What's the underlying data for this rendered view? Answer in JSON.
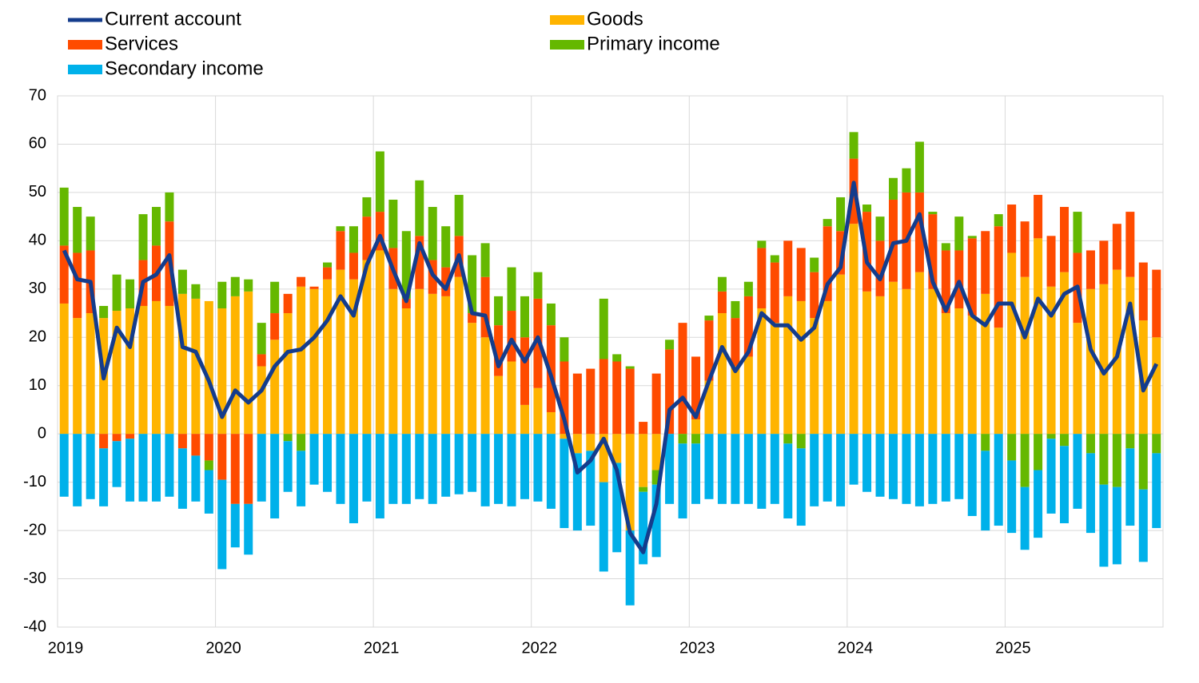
{
  "chart_data": {
    "type": "bar",
    "stacked": true,
    "categories": [
      "2019",
      null,
      null,
      null,
      null,
      null,
      null,
      null,
      null,
      null,
      null,
      null,
      "2020",
      null,
      null,
      null,
      null,
      null,
      null,
      null,
      null,
      null,
      null,
      null,
      "2021",
      null,
      null,
      null,
      null,
      null,
      null,
      null,
      null,
      null,
      null,
      null,
      "2022",
      null,
      null,
      null,
      null,
      null,
      null,
      null,
      null,
      null,
      null,
      null,
      "2023",
      null,
      null,
      null,
      null,
      null,
      null,
      null,
      null,
      null,
      null,
      null,
      "2024",
      null,
      null,
      null,
      null,
      null,
      null,
      null,
      null,
      null,
      null,
      null,
      "2025",
      null,
      null,
      null,
      null,
      null,
      null,
      null,
      null,
      null,
      null,
      null
    ],
    "series": [
      {
        "name": "Current account",
        "type": "line",
        "color": "#143c8c",
        "values": [
          38,
          32,
          31.5,
          11.5,
          22,
          18,
          31.5,
          33,
          37,
          18,
          17,
          11,
          3.5,
          9,
          6.5,
          9,
          14,
          17,
          17.5,
          20,
          23.5,
          28.5,
          24.5,
          35,
          41,
          34,
          27.5,
          39.5,
          33,
          30,
          37,
          25,
          24.5,
          14,
          19.5,
          15,
          20,
          12,
          3,
          -8,
          -5.5,
          -1,
          -7.5,
          -20.5,
          -24.5,
          -14.5,
          5,
          7.5,
          3.5,
          11,
          18,
          13,
          17,
          25,
          22.5,
          22.5,
          19.5,
          22,
          31,
          34.5,
          52,
          35.5,
          32,
          39.5,
          40,
          45.5,
          31.5,
          25.5,
          31.5,
          24.5,
          22.5,
          27,
          27,
          20,
          28,
          24.5,
          29,
          30.5,
          17.5,
          12.5,
          16,
          27,
          9,
          14.5
        ]
      },
      {
        "name": "Goods",
        "type": "bar",
        "color": "#ffb400",
        "values": [
          27,
          24,
          25,
          24,
          25.5,
          26,
          26.5,
          27.5,
          26.5,
          29,
          28,
          27.5,
          26,
          28.5,
          29.5,
          14,
          19.5,
          25,
          30.5,
          30,
          32,
          34,
          32,
          36,
          38,
          30,
          26,
          30,
          29,
          28.5,
          32.5,
          23,
          20,
          12,
          15,
          6,
          9.5,
          4.5,
          -1,
          -4,
          -3.5,
          -10,
          -6,
          -20,
          -11,
          -7.5,
          0,
          0,
          3,
          11,
          25,
          14,
          16,
          26,
          23,
          28.5,
          27.5,
          24,
          27.5,
          33,
          43.5,
          29.5,
          28.5,
          31.5,
          30,
          33.5,
          30,
          25,
          26,
          24.5,
          29,
          22,
          37.5,
          32.5,
          40.5,
          30.5,
          33.5,
          23,
          30,
          31,
          34,
          32.5,
          23.5,
          20
        ]
      },
      {
        "name": "Services",
        "type": "bar",
        "color": "#ff4b00",
        "values": [
          12,
          13.5,
          13,
          -3,
          -1.5,
          -1,
          9.5,
          11.5,
          17.5,
          -3,
          -4.5,
          -5.5,
          -9.5,
          -14.5,
          -14.5,
          2.5,
          5.5,
          4,
          2,
          0.5,
          2.5,
          8,
          5.5,
          9,
          8,
          8.5,
          2,
          11,
          7,
          6,
          8.5,
          2,
          12.5,
          10.5,
          10.5,
          14,
          18.5,
          18,
          15,
          12.5,
          13.5,
          15.5,
          15,
          13.5,
          2.5,
          12.5,
          17.5,
          23,
          13,
          12.5,
          4.5,
          10,
          12.5,
          12.5,
          12.5,
          11.5,
          11,
          9.5,
          15.5,
          9,
          13.5,
          16.5,
          11.5,
          17,
          20,
          16.5,
          15.5,
          13,
          12,
          16,
          13,
          21,
          10,
          11.5,
          9,
          10.5,
          13.5,
          14.5,
          8,
          9,
          9.5,
          13.5,
          12,
          14
        ]
      },
      {
        "name": "Primary income",
        "type": "bar",
        "color": "#65b800",
        "values": [
          12,
          9.5,
          7,
          2.5,
          7.5,
          6,
          9.5,
          8,
          6,
          5,
          3,
          -2,
          5.5,
          4,
          2.5,
          6.5,
          6.5,
          -1.5,
          -3.5,
          0,
          1,
          1,
          5.5,
          4,
          12.5,
          10,
          14,
          11.5,
          11,
          8.5,
          8.5,
          12,
          7,
          6,
          9,
          8.5,
          5.5,
          4.5,
          5,
          0,
          0,
          12.5,
          1.5,
          0.5,
          -1,
          -3,
          2,
          -2,
          -2,
          1,
          3,
          3.5,
          3,
          1.5,
          1.5,
          -2,
          -3,
          3,
          1.5,
          7,
          5.5,
          1.5,
          5,
          4.5,
          5,
          10.5,
          0.5,
          1.5,
          7,
          0.5,
          -3.5,
          2.5,
          -5.5,
          -11,
          -7.5,
          -1,
          -2.5,
          8.5,
          -4,
          -10.5,
          -11,
          -3,
          -11.5,
          -4
        ]
      },
      {
        "name": "Secondary income",
        "type": "bar",
        "color": "#00b1ea",
        "values": [
          -13,
          -15,
          -13.5,
          -12,
          -9.5,
          -13,
          -14,
          -14,
          -13,
          -12.5,
          -9.5,
          -9,
          -18.5,
          -9,
          -10.5,
          -14,
          -17.5,
          -10.5,
          -11.5,
          -10.5,
          -12,
          -14.5,
          -18.5,
          -14,
          -17.5,
          -14.5,
          -14.5,
          -13.5,
          -14.5,
          -13,
          -12.5,
          -12,
          -15,
          -14.5,
          -15,
          -13.5,
          -14,
          -15.5,
          -18.5,
          -16,
          -15.5,
          -18.5,
          -18.5,
          -15.5,
          -15,
          -15,
          -14.5,
          -15.5,
          -12.5,
          -13.5,
          -14.5,
          -14.5,
          -14.5,
          -15.5,
          -14.5,
          -15.5,
          -16,
          -15,
          -14,
          -15,
          -10.5,
          -12,
          -13,
          -13.5,
          -14.5,
          -15,
          -14.5,
          -14,
          -13.5,
          -17,
          -16.5,
          -19,
          -15,
          -13,
          -14,
          -15.5,
          -16,
          -15.5,
          -16.5,
          -17,
          -16,
          -16,
          -15,
          -15.5
        ]
      }
    ],
    "ylim": [
      -40,
      70
    ],
    "yticks": [
      -40,
      -30,
      -20,
      -10,
      0,
      10,
      20,
      30,
      40,
      50,
      60,
      70
    ],
    "grid": true
  }
}
